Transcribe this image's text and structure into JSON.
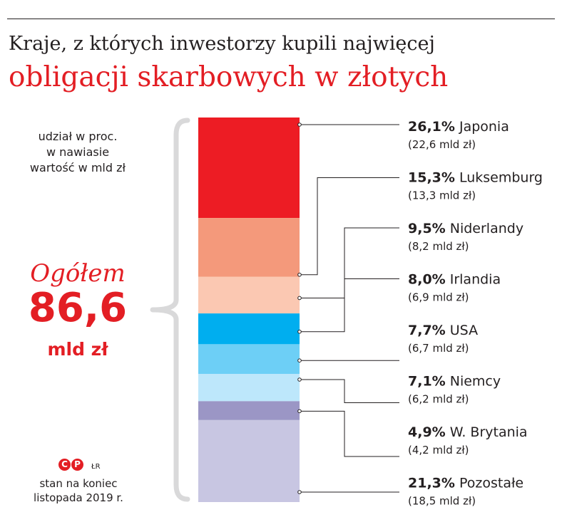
{
  "title_line1": "Kraje, z których inwestorzy kupili najwięcej",
  "title_line2": "obligacji skarbowych w złotych",
  "note_lines": [
    "udział w proc.",
    "w nawiasie",
    "wartość w mld zł"
  ],
  "total": {
    "label": "Ogółem",
    "value": "86,6",
    "unit": "mld zł"
  },
  "logo": {
    "c": "C",
    "p": "P"
  },
  "initials": "ŁR",
  "status_lines": [
    "stan na koniec",
    "listopada 2019 r."
  ],
  "colors": {
    "title_accent": "#e31e24",
    "brace": "#d9d9da",
    "segments": [
      "#ed1c24",
      "#f4997b",
      "#fbc8b2",
      "#00aeef",
      "#6dcff6",
      "#bde7fb",
      "#9b96c5",
      "#c8c6e2"
    ]
  },
  "chart_data": {
    "type": "bar",
    "stacked": true,
    "unit": "%",
    "categories": [
      "Japonia",
      "Luksemburg",
      "Niderlandy",
      "Irlandia",
      "USA",
      "Niemcy",
      "W. Brytania",
      "Pozostałe"
    ],
    "values": [
      26.1,
      15.3,
      9.5,
      8.0,
      7.7,
      7.1,
      4.9,
      21.3
    ],
    "value_labels": [
      "26,1%",
      "15,3%",
      "9,5%",
      "8,0%",
      "7,7%",
      "7,1%",
      "4,9%",
      "21,3%"
    ],
    "amounts_bn_pln": [
      22.6,
      13.3,
      8.2,
      6.9,
      6.7,
      6.2,
      4.2,
      18.5
    ],
    "amount_labels": [
      "(22,6 mld zł)",
      "(13,3 mld zł)",
      "(8,2 mld zł)",
      "(6,9 mld zł)",
      "(6,7 mld zł)",
      "(6,2 mld zł)",
      "(4,2 mld zł)",
      "(18,5 mld zł)"
    ]
  }
}
